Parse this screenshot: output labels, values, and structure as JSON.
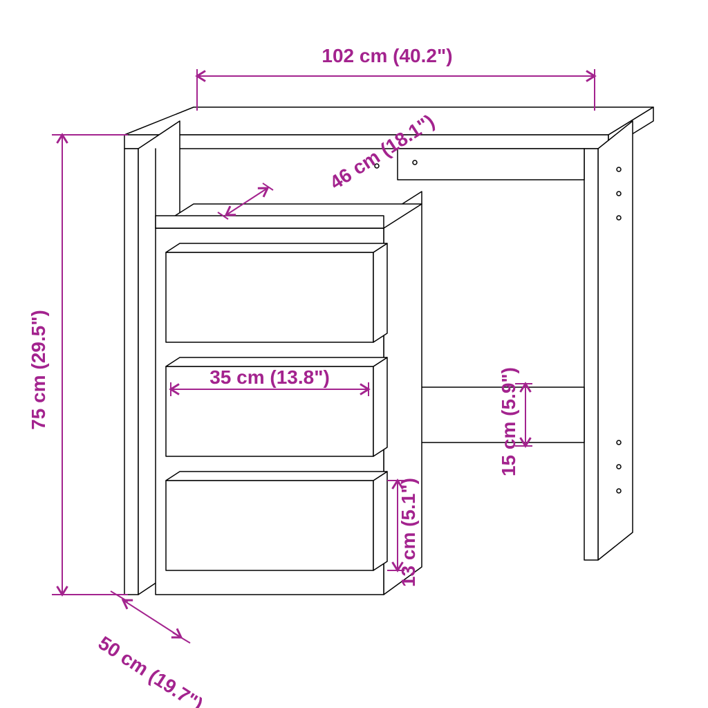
{
  "diagram": {
    "type": "dimensioned-line-drawing",
    "subject": "desk with drawer pedestal",
    "background_color": "#ffffff",
    "outline_color": "#000000",
    "outline_width": 1.5,
    "dimension_color": "#a3238e",
    "label_color": "#a3238e",
    "label_fontsize": 28,
    "label_fontweight": 600,
    "dimensions": {
      "width": {
        "text": "102 cm (40.2\")"
      },
      "height": {
        "text": "75 cm (29.5\")"
      },
      "depth": {
        "text": "50 cm (19.7\")"
      },
      "shelf_depth": {
        "text": "46 cm (18.1\")"
      },
      "drawer_width": {
        "text": "35 cm (13.8\")"
      },
      "drawer_height": {
        "text": "13 cm (5.1\")"
      },
      "crossbar_h": {
        "text": "15 cm (5.9\")"
      }
    }
  }
}
